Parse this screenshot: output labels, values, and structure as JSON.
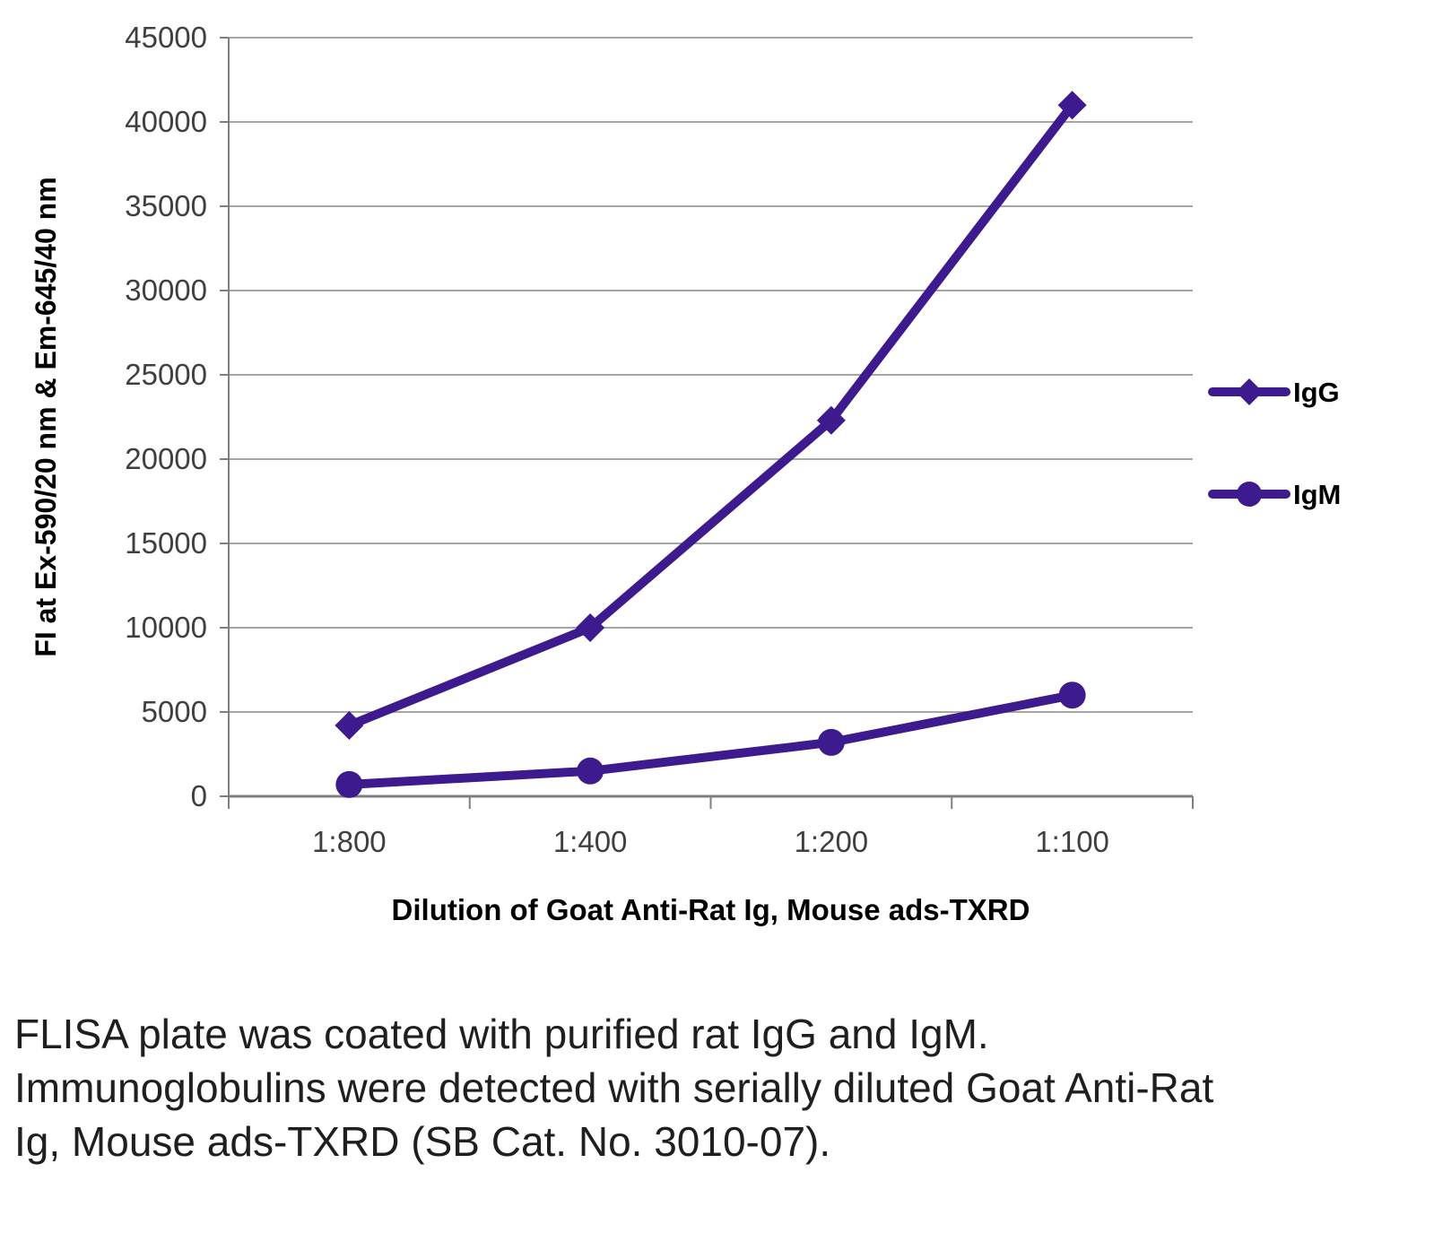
{
  "chart_data": {
    "type": "line",
    "categories": [
      "1:800",
      "1:400",
      "1:200",
      "1:100"
    ],
    "series": [
      {
        "name": "IgG",
        "marker": "diamond",
        "values": [
          4200,
          10000,
          22300,
          41000
        ]
      },
      {
        "name": "IgM",
        "marker": "circle",
        "values": [
          700,
          1500,
          3200,
          6000
        ]
      }
    ],
    "title": "",
    "xlabel": "Dilution of Goat Anti-Rat Ig, Mouse ads-TXRD",
    "ylabel": "FI at Ex-590/20 nm & Em-645/40 nm",
    "ylim": [
      0,
      45000
    ],
    "ytick_step": 5000,
    "grid": true,
    "legend_position": "right",
    "line_color": "#3d1a8e",
    "grid_color": "#a6a6a6",
    "axis_color": "#7f7f7f",
    "tick_label_color": "#3f3f3f",
    "axis_title_color": "#000000"
  },
  "caption": "FLISA plate was coated with purified rat IgG and IgM.  Immunoglobulins were detected with serially diluted Goat Anti-Rat Ig, Mouse ads-TXRD (SB Cat. No. 3010-07)."
}
